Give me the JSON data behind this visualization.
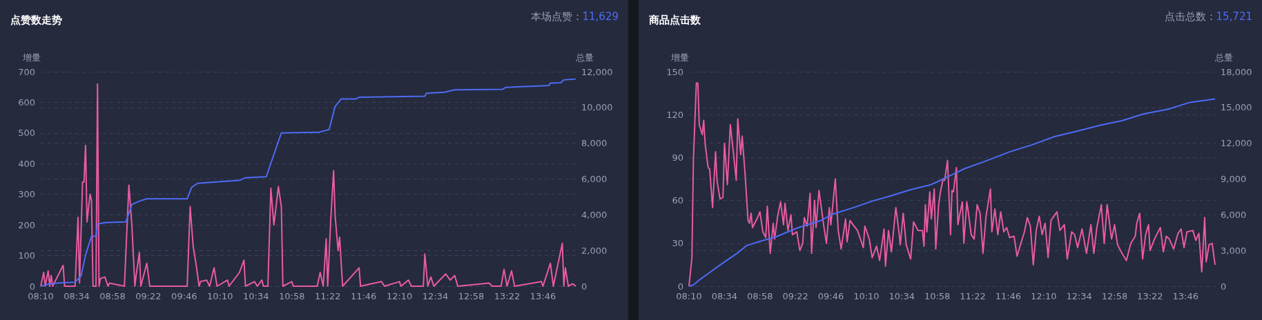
{
  "chart_data": [
    {
      "type": "line",
      "title": "点赞数走势",
      "annotations": [
        "本场点赞：11,629"
      ],
      "ylabel": "增量",
      "y2label": "总量",
      "grid": "y",
      "marker": "none",
      "xlim": [
        8.167,
        14.133
      ],
      "xticks": [
        {
          "value": 8.167,
          "label": "08:10"
        },
        {
          "value": 8.567,
          "label": "08:34"
        },
        {
          "value": 8.967,
          "label": "08:58"
        },
        {
          "value": 9.367,
          "label": "09:22"
        },
        {
          "value": 9.767,
          "label": "09:46"
        },
        {
          "value": 10.167,
          "label": "10:10"
        },
        {
          "value": 10.567,
          "label": "10:34"
        },
        {
          "value": 10.967,
          "label": "10:58"
        },
        {
          "value": 11.367,
          "label": "11:22"
        },
        {
          "value": 11.767,
          "label": "11:46"
        },
        {
          "value": 12.167,
          "label": "12:10"
        },
        {
          "value": 12.567,
          "label": "12:34"
        },
        {
          "value": 12.967,
          "label": "12:58"
        },
        {
          "value": 13.367,
          "label": "13:22"
        },
        {
          "value": 13.767,
          "label": "13:46"
        }
      ],
      "ylim": [
        0,
        700
      ],
      "yticks": [
        0,
        100,
        200,
        300,
        400,
        500,
        600,
        700
      ],
      "y2lim": [
        0,
        12000
      ],
      "y2ticks": [
        0,
        {
          "value": 2000,
          "label": "2,000"
        },
        {
          "value": 4000,
          "label": "4,000"
        },
        {
          "value": 6000,
          "label": "6,000"
        },
        {
          "value": 8000,
          "label": "8,000"
        },
        {
          "value": 10000,
          "label": "10,000"
        },
        {
          "value": 12000,
          "label": "12,000"
        }
      ],
      "series": [
        {
          "color": "#e95ba2",
          "x": [
            8.167,
            8.2,
            8.217,
            8.25,
            8.267,
            8.283,
            8.3,
            8.417,
            8.433,
            8.55,
            8.583,
            8.6,
            8.633,
            8.65,
            8.667,
            8.683,
            8.717,
            8.733,
            8.75,
            8.783,
            8.8,
            8.817,
            8.833,
            8.883,
            8.917,
            8.933,
            9.1,
            9.15,
            9.183,
            9.217,
            9.233,
            9.267,
            9.283,
            9.35,
            9.383,
            9.8,
            9.833,
            9.867,
            9.9,
            9.933,
            9.95,
            10.017,
            10.05,
            10.1,
            10.133,
            10.25,
            10.267,
            10.383,
            10.433,
            10.45,
            10.55,
            10.583,
            10.633,
            10.65,
            10.7,
            10.733,
            10.767,
            10.817,
            10.85,
            10.867,
            10.967,
            10.983,
            11.25,
            11.283,
            11.317,
            11.35,
            11.367,
            11.4,
            11.433,
            11.45,
            11.483,
            11.5,
            11.533,
            11.717,
            11.733,
            11.967,
            12.0,
            12.167,
            12.183,
            12.267,
            12.3,
            12.433,
            12.45,
            12.483,
            12.517,
            12.55,
            12.683,
            12.733,
            12.783,
            12.817,
            13.167,
            13.2,
            13.3,
            13.333,
            13.367,
            13.417,
            13.45,
            13.75,
            13.767,
            13.85,
            13.883,
            13.983,
            14.0,
            14.017,
            14.05,
            14.1,
            14.133
          ],
          "values": [
            0,
            45,
            0,
            50,
            0,
            35,
            0,
            68,
            0,
            0,
            225,
            10,
            340,
            340,
            460,
            210,
            300,
            280,
            0,
            0,
            660,
            0,
            25,
            30,
            0,
            10,
            0,
            330,
            200,
            0,
            40,
            110,
            0,
            75,
            0,
            0,
            260,
            130,
            70,
            0,
            15,
            20,
            0,
            60,
            0,
            20,
            0,
            45,
            85,
            0,
            15,
            0,
            20,
            0,
            0,
            320,
            200,
            325,
            260,
            0,
            15,
            0,
            0,
            45,
            0,
            155,
            0,
            213,
            377,
            228,
            116,
            160,
            0,
            60,
            0,
            15,
            0,
            15,
            0,
            20,
            0,
            0,
            105,
            0,
            30,
            0,
            40,
            20,
            35,
            0,
            10,
            0,
            0,
            55,
            0,
            50,
            0,
            15,
            0,
            75,
            0,
            140,
            0,
            60,
            0,
            8,
            0
          ]
        },
        {
          "color": "#4d6cf5",
          "axis": "y2",
          "x": [
            8.167,
            8.267,
            8.4,
            8.55,
            8.617,
            8.667,
            8.733,
            8.783,
            8.8,
            8.883,
            9.117,
            9.183,
            9.267,
            9.35,
            9.8,
            9.85,
            9.917,
            10.1,
            10.383,
            10.45,
            10.683,
            10.733,
            10.85,
            11.267,
            11.383,
            11.45,
            11.517,
            11.683,
            11.717,
            12.45,
            12.467,
            12.667,
            12.783,
            13.317,
            13.35,
            13.833,
            13.85,
            13.967,
            14.0,
            14.133
          ],
          "values": [
            0,
            130,
            190,
            220,
            580,
            1740,
            2800,
            2800,
            3470,
            3560,
            3600,
            4570,
            4760,
            4890,
            4890,
            5530,
            5760,
            5830,
            5920,
            6070,
            6130,
            6880,
            8580,
            8610,
            8770,
            10060,
            10480,
            10480,
            10570,
            10630,
            10790,
            10850,
            10990,
            11020,
            11120,
            11230,
            11360,
            11380,
            11550,
            11590
          ]
        }
      ]
    },
    {
      "type": "line",
      "title": "商品点击数",
      "annotations": [
        "点击总数：15,721"
      ],
      "ylabel": "增量",
      "y2label": "总量",
      "grid": "y",
      "marker": "none",
      "xlim": [
        8.167,
        14.1
      ],
      "xticks": [
        {
          "value": 8.167,
          "label": "08:10"
        },
        {
          "value": 8.567,
          "label": "08:34"
        },
        {
          "value": 8.967,
          "label": "08:58"
        },
        {
          "value": 9.367,
          "label": "09:22"
        },
        {
          "value": 9.767,
          "label": "09:46"
        },
        {
          "value": 10.167,
          "label": "10:10"
        },
        {
          "value": 10.567,
          "label": "10:34"
        },
        {
          "value": 10.967,
          "label": "10:58"
        },
        {
          "value": 11.367,
          "label": "11:22"
        },
        {
          "value": 11.767,
          "label": "11:46"
        },
        {
          "value": 12.167,
          "label": "12:10"
        },
        {
          "value": 12.567,
          "label": "12:34"
        },
        {
          "value": 12.967,
          "label": "12:58"
        },
        {
          "value": 13.367,
          "label": "13:22"
        },
        {
          "value": 13.767,
          "label": "13:46"
        }
      ],
      "ylim": [
        0,
        150
      ],
      "yticks": [
        0,
        30,
        60,
        90,
        120,
        150
      ],
      "y2lim": [
        0,
        18000
      ],
      "y2ticks": [
        0,
        {
          "value": 3000,
          "label": "3,000"
        },
        {
          "value": 6000,
          "label": "6,000"
        },
        {
          "value": 9000,
          "label": "9,000"
        },
        {
          "value": 12000,
          "label": "12,000"
        },
        {
          "value": 15000,
          "label": "15,000"
        },
        {
          "value": 18000,
          "label": "18,000"
        }
      ],
      "series": [
        {
          "color": "#e95ba2",
          "x": [
            8.167,
            8.2,
            8.217,
            8.25,
            8.267,
            8.283,
            8.317,
            8.333,
            8.35,
            8.383,
            8.4,
            8.433,
            8.467,
            8.483,
            8.517,
            8.55,
            8.567,
            8.6,
            8.633,
            8.667,
            8.7,
            8.717,
            8.75,
            8.767,
            8.8,
            8.833,
            8.85,
            8.867,
            8.883,
            8.933,
            8.967,
            9.0,
            9.033,
            9.05,
            9.083,
            9.117,
            9.133,
            9.167,
            9.2,
            9.233,
            9.25,
            9.283,
            9.317,
            9.333,
            9.383,
            9.417,
            9.45,
            9.467,
            9.5,
            9.533,
            9.55,
            9.583,
            9.6,
            9.633,
            9.683,
            9.717,
            9.75,
            9.767,
            9.817,
            9.85,
            9.883,
            9.933,
            9.95,
            9.983,
            10.017,
            10.067,
            10.133,
            10.15,
            10.2,
            10.233,
            10.283,
            10.317,
            10.367,
            10.383,
            10.417,
            10.45,
            10.5,
            10.533,
            10.55,
            10.583,
            10.617,
            10.667,
            10.7,
            10.75,
            10.8,
            10.817,
            10.833,
            10.85,
            10.883,
            10.9,
            10.933,
            10.95,
            10.983,
            11.0,
            11.033,
            11.05,
            11.083,
            11.117,
            11.133,
            11.15,
            11.183,
            11.2,
            11.217,
            11.25,
            11.267,
            11.3,
            11.317,
            11.35,
            11.383,
            11.417,
            11.45,
            11.483,
            11.517,
            11.567,
            11.583,
            11.617,
            11.65,
            11.683,
            11.717,
            11.75,
            11.783,
            11.833,
            11.867,
            11.9,
            11.95,
            11.983,
            12.017,
            12.05,
            12.083,
            12.117,
            12.15,
            12.183,
            12.217,
            12.25,
            12.283,
            12.317,
            12.35,
            12.4,
            12.433,
            12.483,
            12.517,
            12.55,
            12.6,
            12.65,
            12.7,
            12.733,
            12.767,
            12.817,
            12.85,
            12.883,
            12.933,
            12.967,
            13.0,
            13.05,
            13.1,
            13.15,
            13.2,
            13.217,
            13.25,
            13.283,
            13.317,
            13.35,
            13.367,
            13.417,
            13.483,
            13.517,
            13.55,
            13.583,
            13.633,
            13.683,
            13.717,
            13.75,
            13.783,
            13.85,
            13.883,
            13.917,
            13.95,
            13.983,
            14.0,
            14.033,
            14.067,
            14.1
          ],
          "values": [
            0,
            20,
            89,
            142,
            142,
            113,
            106,
            116,
            99,
            83,
            82,
            55,
            94,
            74,
            61,
            62,
            100,
            71,
            113,
            94,
            74,
            117,
            92,
            105,
            78,
            46,
            44,
            51,
            41,
            47,
            52,
            38,
            34,
            56,
            23,
            44,
            33,
            49,
            59,
            43,
            58,
            39,
            50,
            36,
            38,
            25,
            30,
            48,
            42,
            65,
            23,
            60,
            41,
            67,
            44,
            30,
            55,
            43,
            75,
            39,
            26,
            47,
            31,
            46,
            43,
            39,
            27,
            42,
            33,
            20,
            28,
            18,
            40,
            14,
            39,
            24,
            55,
            39,
            29,
            51,
            29,
            19,
            45,
            39,
            39,
            28,
            57,
            38,
            66,
            47,
            68,
            26,
            57,
            65,
            75,
            74,
            88,
            36,
            67,
            66,
            83,
            43,
            49,
            59,
            30,
            59,
            52,
            36,
            33,
            57,
            51,
            23,
            49,
            68,
            38,
            54,
            36,
            52,
            38,
            41,
            34,
            35,
            21,
            28,
            38,
            48,
            42,
            15,
            39,
            49,
            36,
            44,
            20,
            46,
            49,
            52,
            39,
            43,
            19,
            38,
            36,
            27,
            40,
            23,
            43,
            23,
            41,
            57,
            30,
            57,
            33,
            43,
            29,
            23,
            18,
            30,
            35,
            44,
            51,
            19,
            36,
            43,
            25,
            33,
            41,
            24,
            35,
            33,
            26,
            37,
            40,
            27,
            38,
            39,
            32,
            37,
            10,
            48,
            17,
            29,
            30,
            15
          ]
        },
        {
          "color": "#4d6cf5",
          "axis": "y2",
          "x": [
            8.167,
            8.217,
            8.283,
            8.383,
            8.483,
            8.583,
            8.717,
            8.817,
            8.967,
            9.15,
            9.4,
            9.65,
            9.8,
            10.033,
            10.233,
            10.417,
            10.667,
            10.883,
            11.0,
            11.133,
            11.267,
            11.517,
            11.783,
            12.033,
            12.283,
            12.55,
            12.8,
            13.05,
            13.3,
            13.567,
            13.817,
            14.1
          ],
          "values": [
            0,
            100,
            520,
            1060,
            1600,
            2120,
            2800,
            3410,
            3760,
            4150,
            4920,
            5500,
            6080,
            6620,
            7140,
            7520,
            8100,
            8490,
            8870,
            9360,
            9840,
            10510,
            11280,
            11860,
            12540,
            13020,
            13500,
            13890,
            14470,
            14850,
            15430,
            15720
          ]
        }
      ]
    }
  ]
}
